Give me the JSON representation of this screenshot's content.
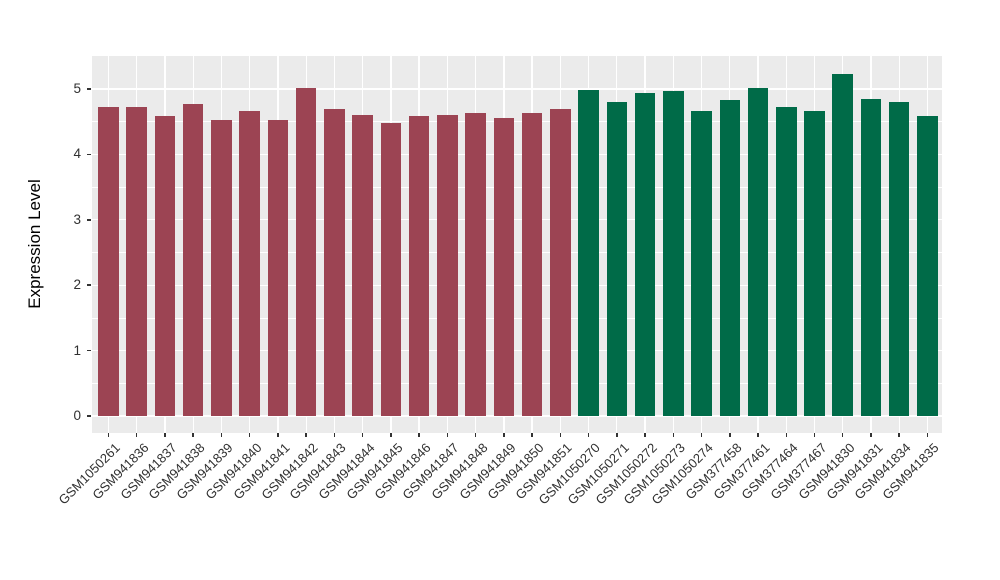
{
  "chart_data": {
    "type": "bar",
    "title": "",
    "xlabel": "",
    "ylabel": "Expression Level",
    "ylim": [
      0,
      5.5
    ],
    "yticks": [
      0,
      1,
      2,
      3,
      4,
      5
    ],
    "legend_position": "none",
    "grid": "white major+minor horizontal lines and vertical category lines on gray panel",
    "panel_bg": "#EBEBEB",
    "group_colors": {
      "group_1": "#9C4453",
      "group_2": "#006B48"
    },
    "categories": [
      "GSM1050261",
      "GSM941836",
      "GSM941837",
      "GSM941838",
      "GSM941839",
      "GSM941840",
      "GSM941841",
      "GSM941842",
      "GSM941843",
      "GSM941844",
      "GSM941845",
      "GSM941846",
      "GSM941847",
      "GSM941848",
      "GSM941849",
      "GSM941850",
      "GSM941851",
      "GSM1050270",
      "GSM1050271",
      "GSM1050272",
      "GSM1050273",
      "GSM1050274",
      "GSM377458",
      "GSM377461",
      "GSM377464",
      "GSM377467",
      "GSM941830",
      "GSM941831",
      "GSM941834",
      "GSM941835"
    ],
    "values": [
      4.72,
      4.73,
      4.58,
      4.77,
      4.53,
      4.67,
      4.52,
      5.01,
      4.7,
      4.61,
      4.48,
      4.59,
      4.6,
      4.64,
      4.56,
      4.63,
      4.69,
      4.99,
      4.8,
      4.94,
      4.97,
      4.66,
      4.83,
      5.02,
      4.72,
      4.66,
      5.23,
      4.84,
      4.8,
      4.59
    ],
    "bar_colors": [
      "#9C4453",
      "#9C4453",
      "#9C4453",
      "#9C4453",
      "#9C4453",
      "#9C4453",
      "#9C4453",
      "#9C4453",
      "#9C4453",
      "#9C4453",
      "#9C4453",
      "#9C4453",
      "#9C4453",
      "#9C4453",
      "#9C4453",
      "#9C4453",
      "#9C4453",
      "#006B48",
      "#006B48",
      "#006B48",
      "#006B48",
      "#006B48",
      "#006B48",
      "#006B48",
      "#006B48",
      "#006B48",
      "#006B48",
      "#006B48",
      "#006B48",
      "#006B48"
    ]
  }
}
